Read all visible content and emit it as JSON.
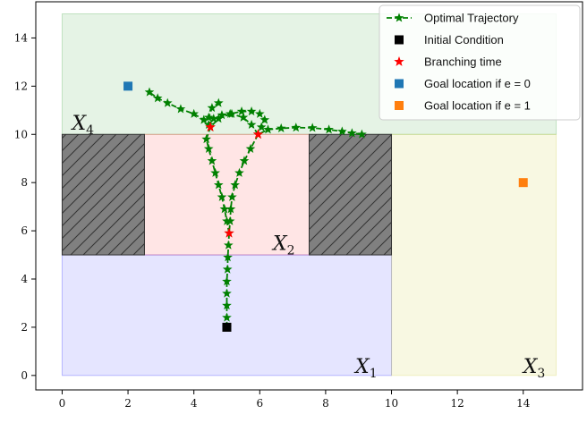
{
  "chart_data": {
    "type": "scatter",
    "title": "",
    "xlabel": "",
    "ylabel": "",
    "xlim": [
      -0.8,
      15.8
    ],
    "ylim": [
      -0.6,
      15.5
    ],
    "xticks": [
      "0",
      "2",
      "4",
      "6",
      "8",
      "10",
      "12",
      "14"
    ],
    "xtick_values": [
      0,
      2,
      4,
      6,
      8,
      10,
      12,
      14
    ],
    "yticks": [
      "0",
      "2",
      "4",
      "6",
      "8",
      "10",
      "12",
      "14"
    ],
    "ytick_values": [
      0,
      2,
      4,
      6,
      8,
      10,
      12,
      14
    ],
    "grid": false,
    "legend_position": "top-right",
    "regions": [
      {
        "name": "X4",
        "label": "X",
        "subscript": "4",
        "x0": 0,
        "y0": 10,
        "x1": 15,
        "y1": 15,
        "color": "#2ca02c",
        "opacity": 0.12,
        "label_at": [
          0.3,
          10.2
        ]
      },
      {
        "name": "X2",
        "label": "X",
        "subscript": "2",
        "x0": 2.5,
        "y0": 5,
        "x1": 7.5,
        "y1": 10,
        "color": "#ff0000",
        "opacity": 0.1,
        "label_at": [
          6.4,
          5.2
        ]
      },
      {
        "name": "X1",
        "label": "X",
        "subscript": "1",
        "x0": 0,
        "y0": 0,
        "x1": 10,
        "y1": 5,
        "color": "#0000ff",
        "opacity": 0.1,
        "label_at": [
          8.9,
          0.1
        ]
      },
      {
        "name": "X3",
        "label": "X",
        "subscript": "3",
        "x0": 10,
        "y0": 0,
        "x1": 15,
        "y1": 10,
        "color": "#cccc33",
        "opacity": 0.14,
        "label_at": [
          14.0,
          0.1
        ]
      }
    ],
    "obstacles": [
      {
        "x0": 0,
        "y0": 5,
        "x1": 2.5,
        "y1": 10
      },
      {
        "x0": 7.5,
        "y0": 5,
        "x1": 10,
        "y1": 10
      }
    ],
    "series": [
      {
        "name": "Optimal Trajectory",
        "color": "#008000",
        "marker": "star",
        "branches": [
          [
            [
              5.0,
              2.0
            ],
            [
              5.0,
              2.4
            ],
            [
              5.0,
              2.9
            ],
            [
              5.0,
              3.4
            ],
            [
              5.0,
              3.9
            ],
            [
              5.02,
              4.4
            ],
            [
              5.03,
              4.9
            ],
            [
              5.05,
              5.4
            ],
            [
              5.07,
              5.9
            ],
            [
              5.1,
              6.4
            ],
            [
              5.12,
              6.9
            ],
            [
              5.16,
              7.4
            ],
            [
              5.25,
              7.9
            ],
            [
              5.38,
              8.4
            ],
            [
              5.53,
              8.9
            ],
            [
              5.72,
              9.4
            ],
            [
              5.95,
              10.0
            ],
            [
              6.25,
              10.2
            ],
            [
              6.65,
              10.25
            ],
            [
              7.1,
              10.28
            ],
            [
              7.6,
              10.27
            ],
            [
              8.1,
              10.2
            ],
            [
              8.5,
              10.12
            ],
            [
              8.8,
              10.05
            ],
            [
              9.1,
              10.0
            ]
          ],
          [
            [
              5.95,
              10.0
            ],
            [
              5.75,
              10.4
            ],
            [
              5.5,
              10.7
            ],
            [
              5.15,
              10.85
            ],
            [
              4.85,
              10.8
            ],
            [
              4.6,
              10.65
            ],
            [
              4.45,
              10.4
            ]
          ],
          [
            [
              5.07,
              5.9
            ],
            [
              5.0,
              6.4
            ],
            [
              4.93,
              6.9
            ],
            [
              4.85,
              7.4
            ],
            [
              4.75,
              7.9
            ],
            [
              4.65,
              8.4
            ],
            [
              4.55,
              8.9
            ],
            [
              4.45,
              9.4
            ],
            [
              4.38,
              9.8
            ],
            [
              4.5,
              10.3
            ],
            [
              4.75,
              10.65
            ],
            [
              5.1,
              10.85
            ],
            [
              5.45,
              10.95
            ],
            [
              5.75,
              10.95
            ],
            [
              6.0,
              10.85
            ],
            [
              6.15,
              10.6
            ],
            [
              6.05,
              10.3
            ],
            [
              5.95,
              10.0
            ]
          ],
          [
            [
              4.5,
              10.3
            ],
            [
              4.3,
              10.6
            ],
            [
              4.0,
              10.85
            ],
            [
              3.6,
              11.05
            ],
            [
              3.2,
              11.3
            ],
            [
              2.9,
              11.5
            ],
            [
              2.65,
              11.75
            ]
          ],
          [
            [
              4.5,
              10.3
            ],
            [
              4.45,
              10.7
            ],
            [
              4.55,
              11.1
            ],
            [
              4.75,
              11.3
            ]
          ]
        ]
      }
    ],
    "branching_points": [
      [
        5.07,
        5.9
      ],
      [
        4.5,
        10.3
      ],
      [
        5.95,
        10.0
      ]
    ],
    "initial_condition": [
      5.0,
      2.0
    ],
    "goal_e0": [
      2.0,
      12.0
    ],
    "goal_e1": [
      14.0,
      8.0
    ],
    "colors": {
      "trajectory": "#008000",
      "initial": "#000000",
      "branching": "#ff0000",
      "goal_e0": "#1f77b4",
      "goal_e1": "#ff7f0e",
      "obstacle": "#808080"
    },
    "legend": [
      {
        "key": "trajectory",
        "label": "Optimal Trajectory"
      },
      {
        "key": "initial",
        "label": "Initial Condition"
      },
      {
        "key": "branching",
        "label": "Branching time"
      },
      {
        "key": "goal_e0",
        "label": "Goal location if e = 0"
      },
      {
        "key": "goal_e1",
        "label": "Goal location if e = 1"
      }
    ]
  }
}
